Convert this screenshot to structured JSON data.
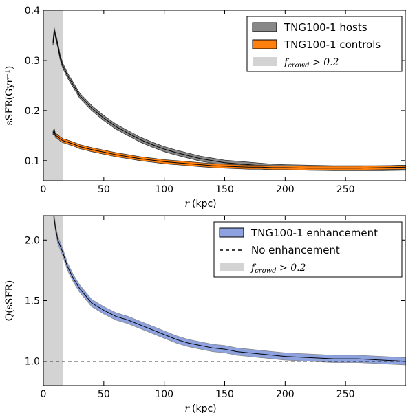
{
  "chart_data": [
    {
      "type": "line",
      "xlabel": "r (kpc)",
      "xlabel_italic": "r",
      "xlabel_unit": "(kpc)",
      "ylabel": "sSFR(Gyr⁻¹)",
      "xlim": [
        0,
        300
      ],
      "ylim": [
        0.06,
        0.4
      ],
      "xticks": [
        0,
        50,
        100,
        150,
        200,
        250
      ],
      "yticks": [
        0.1,
        0.2,
        0.3,
        0.4
      ],
      "xtick_labels": [
        "0",
        "50",
        "100",
        "150",
        "200",
        "250"
      ],
      "ytick_labels": [
        "0.1",
        "0.2",
        "0.3",
        "0.4"
      ],
      "shaded_region": {
        "x": [
          0,
          16
        ],
        "label": "f_crowd > 0.2",
        "color": "#d3d3d3"
      },
      "legend_position": "top-right",
      "grid": false,
      "series": [
        {
          "name": "TNG100-1 hosts",
          "color": "#888888",
          "x": [
            8,
            9,
            10,
            12,
            14,
            16,
            20,
            25,
            30,
            40,
            50,
            60,
            70,
            80,
            90,
            100,
            110,
            120,
            130,
            140,
            150,
            160,
            170,
            180,
            190,
            200,
            220,
            240,
            260,
            280,
            300
          ],
          "y": [
            0.335,
            0.36,
            0.35,
            0.33,
            0.305,
            0.29,
            0.27,
            0.25,
            0.23,
            0.205,
            0.185,
            0.168,
            0.155,
            0.142,
            0.132,
            0.123,
            0.116,
            0.11,
            0.104,
            0.1,
            0.096,
            0.094,
            0.092,
            0.09,
            0.088,
            0.087,
            0.086,
            0.085,
            0.085,
            0.085,
            0.086
          ],
          "band": 0.005
        },
        {
          "name": "TNG100-1 controls",
          "color": "#ff7f0e",
          "x": [
            8,
            9,
            10,
            12,
            14,
            16,
            20,
            25,
            30,
            40,
            50,
            60,
            70,
            80,
            90,
            100,
            110,
            120,
            130,
            140,
            150,
            160,
            170,
            180,
            190,
            200,
            220,
            240,
            260,
            280,
            300
          ],
          "y": [
            0.155,
            0.16,
            0.15,
            0.148,
            0.143,
            0.14,
            0.137,
            0.133,
            0.128,
            0.122,
            0.117,
            0.112,
            0.108,
            0.104,
            0.101,
            0.098,
            0.096,
            0.094,
            0.092,
            0.09,
            0.089,
            0.088,
            0.087,
            0.087,
            0.086,
            0.086,
            0.085,
            0.085,
            0.085,
            0.086,
            0.087
          ],
          "band": 0.004
        }
      ],
      "legend": [
        {
          "label": "TNG100-1 hosts",
          "kind": "patch",
          "color": "#888888"
        },
        {
          "label": "TNG100-1 controls",
          "kind": "patch",
          "color": "#ff7f0e"
        },
        {
          "label": "f_crowd > 0.2",
          "kind": "shade",
          "color": "#d3d3d3",
          "math_main": "f",
          "math_sub": "crowd",
          "math_tail": " > 0.2"
        }
      ]
    },
    {
      "type": "line",
      "xlabel": "r (kpc)",
      "xlabel_italic": "r",
      "xlabel_unit": "(kpc)",
      "ylabel": "Q(sSFR)",
      "xlim": [
        0,
        300
      ],
      "ylim": [
        0.8,
        2.2
      ],
      "xticks": [
        0,
        50,
        100,
        150,
        200,
        250
      ],
      "yticks": [
        1.0,
        1.5,
        2.0
      ],
      "xtick_labels": [
        "0",
        "50",
        "100",
        "150",
        "200",
        "250"
      ],
      "ytick_labels": [
        "1.0",
        "1.5",
        "2.0"
      ],
      "shaded_region": {
        "x": [
          0,
          16
        ],
        "label": "f_crowd > 0.2",
        "color": "#d3d3d3"
      },
      "legend_position": "top-right",
      "grid": false,
      "series": [
        {
          "name": "TNG100-1 enhancement",
          "color": "#1f3fbf",
          "fill": "#8ea2e0",
          "x": [
            8,
            10,
            12,
            14,
            16,
            20,
            25,
            30,
            40,
            50,
            60,
            70,
            80,
            90,
            100,
            110,
            120,
            130,
            140,
            150,
            160,
            170,
            180,
            190,
            200,
            220,
            240,
            260,
            280,
            300
          ],
          "y": [
            2.25,
            2.1,
            2.0,
            1.95,
            1.9,
            1.78,
            1.68,
            1.6,
            1.48,
            1.42,
            1.37,
            1.34,
            1.3,
            1.26,
            1.22,
            1.18,
            1.15,
            1.13,
            1.11,
            1.1,
            1.08,
            1.07,
            1.06,
            1.05,
            1.04,
            1.03,
            1.02,
            1.02,
            1.01,
            1.0
          ],
          "band": 0.03
        },
        {
          "name": "No enhancement",
          "color": "#000000",
          "style": "dashed",
          "x": [
            0,
            300
          ],
          "y": [
            1.0,
            1.0
          ]
        }
      ],
      "legend": [
        {
          "label": "TNG100-1 enhancement",
          "kind": "patch",
          "color": "#8ea2e0"
        },
        {
          "label": "No enhancement",
          "kind": "dashed",
          "color": "#000000"
        },
        {
          "label": "f_crowd > 0.2",
          "kind": "shade",
          "color": "#d3d3d3",
          "math_main": "f",
          "math_sub": "crowd",
          "math_tail": " > 0.2"
        }
      ]
    }
  ]
}
